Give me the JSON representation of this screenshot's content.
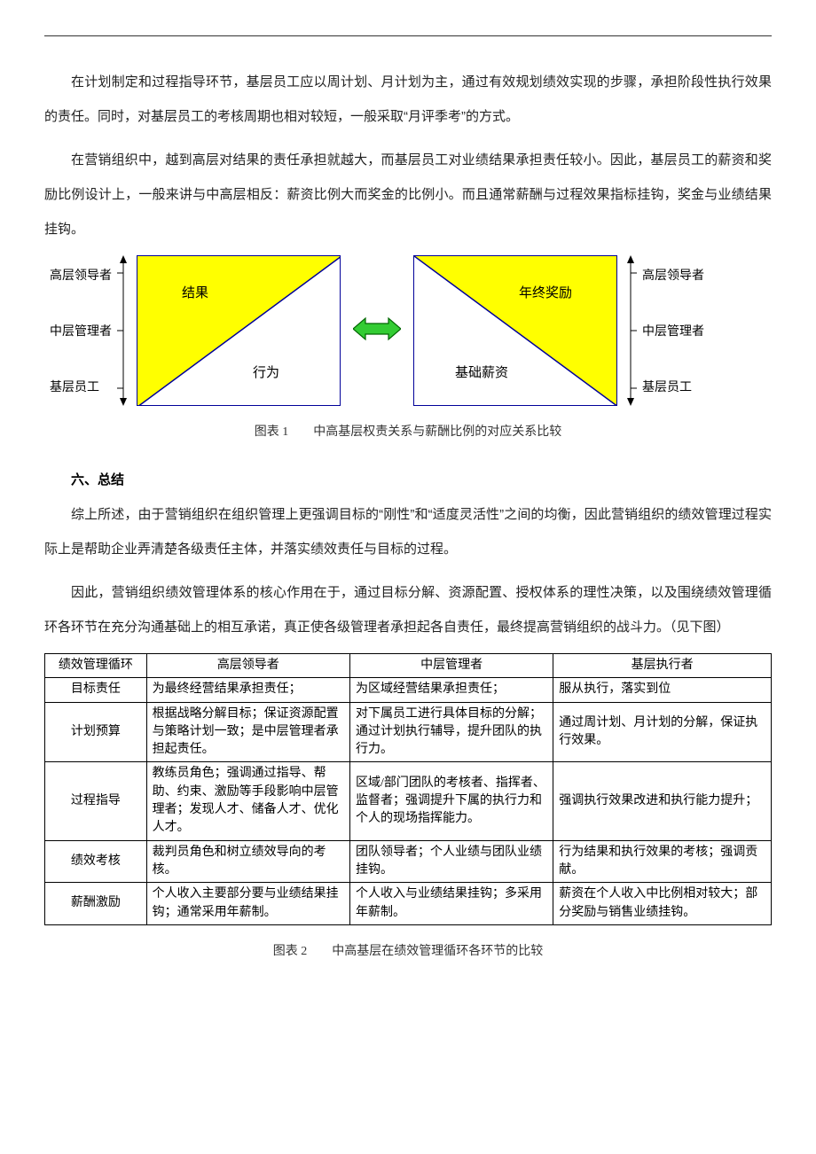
{
  "paragraphs": {
    "p1": "在计划制定和过程指导环节，基层员工应以周计划、月计划为主，通过有效规划绩效实现的步骤，承担阶段性执行效果的责任。同时，对基层员工的考核周期也相对较短，一般采取“月评季考”的方式。",
    "p2": "在营销组织中，越到高层对结果的责任承担就越大，而基层员工对业绩结果承担责任较小。因此，基层员工的薪资和奖励比例设计上，一般来讲与中高层相反：薪资比例大而奖金的比例小。而且通常薪酬与过程效果指标挂钩，奖金与业绩结果挂钩。",
    "section6": "六、总结",
    "p3": "综上所述，由于营销组织在组织管理上更强调目标的“刚性”和“适度灵活性”之间的均衡，因此营销组织的绩效管理过程实际上是帮助企业弄清楚各级责任主体，并落实绩效责任与目标的过程。",
    "p4": "因此，营销组织绩效管理体系的核心作用在于，通过目标分解、资源配置、授权体系的理性决策，以及围绕绩效管理循环各环节在充分沟通基础上的相互承诺，真正使各级管理者承担起各自责任，最终提高营销组织的战斗力。（见下图）"
  },
  "figure1": {
    "left_axis_labels": [
      "高层领导者",
      "中层管理者",
      "基层员工"
    ],
    "right_axis_labels": [
      "高层领导者",
      "中层管理者",
      "基层员工"
    ],
    "left_panel": {
      "upper_label": "结果",
      "lower_label": "行为",
      "fill_color": "#ffff00",
      "border_color": "#000099"
    },
    "right_panel": {
      "upper_label": "年终奖励",
      "lower_label": "基础薪资",
      "fill_color": "#ffff00",
      "border_color": "#000099"
    },
    "connector_arrow_color": "#33cc33",
    "connector_arrow_border": "#006600",
    "axis_arrow_color": "#000000",
    "caption": "图表 1　　中高基层权责关系与薪酬比例的对应关系比较"
  },
  "figure2": {
    "caption": "图表 2　　中高基层在绩效管理循环各环节的比较",
    "columns": [
      "绩效管理循环",
      "高层领导者",
      "中层管理者",
      "基层执行者"
    ],
    "col_widths": [
      "14%",
      "28%",
      "28%",
      "30%"
    ],
    "rows": [
      {
        "label": "目标责任",
        "cells": [
          "为最终经营结果承担责任；",
          "为区域经营结果承担责任；",
          "服从执行，落实到位"
        ]
      },
      {
        "label": "计划预算",
        "cells": [
          "根据战略分解目标；保证资源配置与策略计划一致；是中层管理者承担起责任。",
          "对下属员工进行具体目标的分解；通过计划执行辅导，提升团队的执行力。",
          "通过周计划、月计划的分解，保证执行效果。"
        ]
      },
      {
        "label": "过程指导",
        "cells": [
          "教练员角色；强调通过指导、帮助、约束、激励等手段影响中层管理者；发现人才、储备人才、优化人才。",
          "区域/部门团队的考核者、指挥者、监督者；强调提升下属的执行力和个人的现场指挥能力。",
          "强调执行效果改进和执行能力提升；"
        ]
      },
      {
        "label": "绩效考核",
        "cells": [
          "裁判员角色和树立绩效导向的考核。",
          "团队领导者；个人业绩与团队业绩挂钩。",
          "行为结果和执行效果的考核；强调贡献。"
        ]
      },
      {
        "label": "薪酬激励",
        "cells": [
          "个人收入主要部分要与业绩结果挂钩；通常采用年薪制。",
          "个人收入与业绩结果挂钩；多采用年薪制。",
          "薪资在个人收入中比例相对较大；部分奖励与销售业绩挂钩。"
        ]
      }
    ]
  }
}
